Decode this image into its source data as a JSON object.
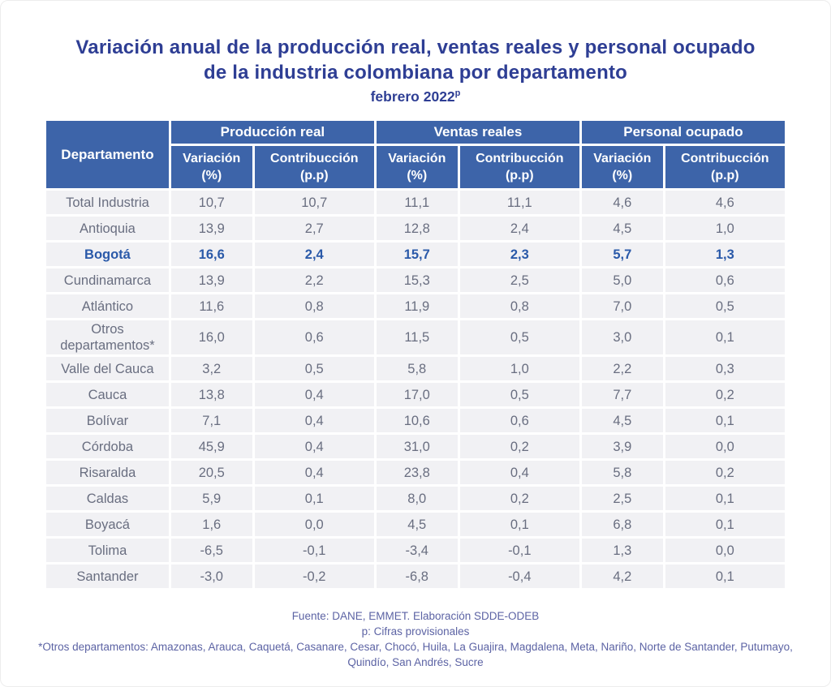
{
  "title": "Variación anual de la producción real, ventas reales y personal ocupado de la industria colombiana por departamento",
  "subtitle": {
    "text": "febrero 2022",
    "superscript": "p"
  },
  "table": {
    "department_header": "Departamento",
    "groups": [
      {
        "label": "Producción real"
      },
      {
        "label": "Ventas reales"
      },
      {
        "label": "Personal ocupado"
      }
    ],
    "sub": {
      "variation_line1": "Variación",
      "variation_line2": "(%)",
      "contribution_line1": "Contribucción",
      "contribution_line2": "(p.p)"
    },
    "rows": [
      {
        "department": "Total Industria",
        "highlight": false,
        "values": [
          "10,7",
          "10,7",
          "11,1",
          "11,1",
          "4,6",
          "4,6"
        ]
      },
      {
        "department": "Antioquia",
        "highlight": false,
        "values": [
          "13,9",
          "2,7",
          "12,8",
          "2,4",
          "4,5",
          "1,0"
        ]
      },
      {
        "department": "Bogotá",
        "highlight": true,
        "values": [
          "16,6",
          "2,4",
          "15,7",
          "2,3",
          "5,7",
          "1,3"
        ]
      },
      {
        "department": "Cundinamarca",
        "highlight": false,
        "values": [
          "13,9",
          "2,2",
          "15,3",
          "2,5",
          "5,0",
          "0,6"
        ]
      },
      {
        "department": "Atlántico",
        "highlight": false,
        "values": [
          "11,6",
          "0,8",
          "11,9",
          "0,8",
          "7,0",
          "0,5"
        ]
      },
      {
        "department": "Otros departamentos*",
        "highlight": false,
        "values": [
          "16,0",
          "0,6",
          "11,5",
          "0,5",
          "3,0",
          "0,1"
        ]
      },
      {
        "department": "Valle del Cauca",
        "highlight": false,
        "values": [
          "3,2",
          "0,5",
          "5,8",
          "1,0",
          "2,2",
          "0,3"
        ]
      },
      {
        "department": "Cauca",
        "highlight": false,
        "values": [
          "13,8",
          "0,4",
          "17,0",
          "0,5",
          "7,7",
          "0,2"
        ]
      },
      {
        "department": "Bolívar",
        "highlight": false,
        "values": [
          "7,1",
          "0,4",
          "10,6",
          "0,6",
          "4,5",
          "0,1"
        ]
      },
      {
        "department": "Córdoba",
        "highlight": false,
        "values": [
          "45,9",
          "0,4",
          "31,0",
          "0,2",
          "3,9",
          "0,0"
        ]
      },
      {
        "department": "Risaralda",
        "highlight": false,
        "values": [
          "20,5",
          "0,4",
          "23,8",
          "0,4",
          "5,8",
          "0,2"
        ]
      },
      {
        "department": "Caldas",
        "highlight": false,
        "values": [
          "5,9",
          "0,1",
          "8,0",
          "0,2",
          "2,5",
          "0,1"
        ]
      },
      {
        "department": "Boyacá",
        "highlight": false,
        "values": [
          "1,6",
          "0,0",
          "4,5",
          "0,1",
          "6,8",
          "0,1"
        ]
      },
      {
        "department": "Tolima",
        "highlight": false,
        "values": [
          "-6,5",
          "-0,1",
          "-3,4",
          "-0,1",
          "1,3",
          "0,0"
        ]
      },
      {
        "department": "Santander",
        "highlight": false,
        "values": [
          "-3,0",
          "-0,2",
          "-6,8",
          "-0,4",
          "4,2",
          "0,1"
        ]
      }
    ]
  },
  "footer": {
    "source": "Fuente: DANE, EMMET. Elaboración SDDE-ODEB",
    "provisional_note": "p: Cifras provisionales",
    "other_departments_note": "*Otros departamentos: Amazonas, Arauca, Caquetá, Casanare, Cesar, Chocó, Huila, La Guajira, Magdalena, Meta, Nariño, Norte de Santander, Putumayo, Quindío, San Andrés, Sucre"
  },
  "colors": {
    "header_bg": "#3d64a9",
    "row_bg": "#f1f1f4",
    "title_text": "#2e3e94",
    "body_text": "#696e80",
    "highlight_text": "#2b5aa9",
    "footer_text": "#5c63a4"
  },
  "chart_data": {
    "type": "table",
    "title": "Variación anual de la producción real, ventas reales y personal ocupado de la industria colombiana por departamento",
    "subtitle": "febrero 2022p",
    "column_groups": [
      "Producción real",
      "Ventas reales",
      "Personal ocupado"
    ],
    "columns": [
      "Departamento",
      "Producción real - Variación (%)",
      "Producción real - Contribucción (p.p)",
      "Ventas reales - Variación (%)",
      "Ventas reales - Contribucción (p.p)",
      "Personal ocupado - Variación (%)",
      "Personal ocupado - Contribucción (p.p)"
    ],
    "rows": [
      [
        "Total Industria",
        10.7,
        10.7,
        11.1,
        11.1,
        4.6,
        4.6
      ],
      [
        "Antioquia",
        13.9,
        2.7,
        12.8,
        2.4,
        4.5,
        1.0
      ],
      [
        "Bogotá",
        16.6,
        2.4,
        15.7,
        2.3,
        5.7,
        1.3
      ],
      [
        "Cundinamarca",
        13.9,
        2.2,
        15.3,
        2.5,
        5.0,
        0.6
      ],
      [
        "Atlántico",
        11.6,
        0.8,
        11.9,
        0.8,
        7.0,
        0.5
      ],
      [
        "Otros departamentos*",
        16.0,
        0.6,
        11.5,
        0.5,
        3.0,
        0.1
      ],
      [
        "Valle del Cauca",
        3.2,
        0.5,
        5.8,
        1.0,
        2.2,
        0.3
      ],
      [
        "Cauca",
        13.8,
        0.4,
        17.0,
        0.5,
        7.7,
        0.2
      ],
      [
        "Bolívar",
        7.1,
        0.4,
        10.6,
        0.6,
        4.5,
        0.1
      ],
      [
        "Córdoba",
        45.9,
        0.4,
        31.0,
        0.2,
        3.9,
        0.0
      ],
      [
        "Risaralda",
        20.5,
        0.4,
        23.8,
        0.4,
        5.8,
        0.2
      ],
      [
        "Caldas",
        5.9,
        0.1,
        8.0,
        0.2,
        2.5,
        0.1
      ],
      [
        "Boyacá",
        1.6,
        0.0,
        4.5,
        0.1,
        6.8,
        0.1
      ],
      [
        "Tolima",
        -6.5,
        -0.1,
        -3.4,
        -0.1,
        1.3,
        0.0
      ],
      [
        "Santander",
        -3.0,
        -0.2,
        -6.8,
        -0.4,
        4.2,
        0.1
      ]
    ],
    "notes": [
      "Fuente: DANE, EMMET. Elaboración SDDE-ODEB",
      "p: Cifras provisionales",
      "*Otros departamentos: Amazonas, Arauca, Caquetá, Casanare, Cesar, Chocó, Huila, La Guajira, Magdalena, Meta, Nariño, Norte de Santander, Putumayo, Quindío, San Andrés, Sucre"
    ]
  }
}
